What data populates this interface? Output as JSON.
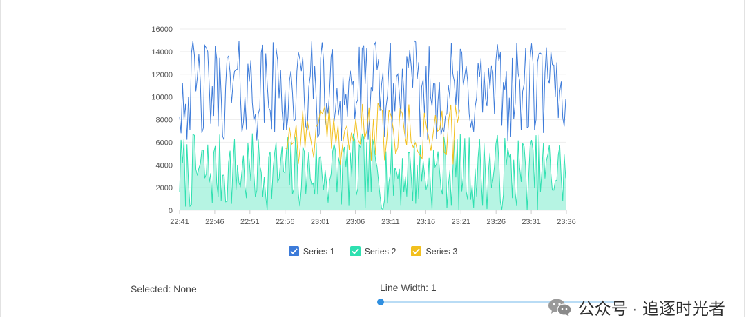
{
  "chart_data": {
    "type": "area",
    "y_ticks": [
      "0",
      "2000",
      "4000",
      "6000",
      "8000",
      "10000",
      "12000",
      "14000",
      "16000"
    ],
    "x_ticks": [
      "22:41",
      "22:46",
      "22:51",
      "22:56",
      "23:01",
      "23:06",
      "23:11",
      "23:16",
      "23:21",
      "23:26",
      "23:31",
      "23:36"
    ],
    "ylim": [
      0,
      16000
    ],
    "xlim": [
      "22:41",
      "23:36"
    ],
    "grid": "horizontal",
    "legend_placement": "bottom-center",
    "series": [
      {
        "name": "Series 1",
        "style": "line",
        "color": "#3d7bd9",
        "x": [
          "22:41",
          "22:46",
          "22:51",
          "22:56",
          "23:01",
          "23:06",
          "23:11",
          "23:16",
          "23:21",
          "23:26",
          "23:31",
          "23:36"
        ],
        "values": [
          14200,
          9500,
          11000,
          10500,
          9800,
          11800,
          10200,
          12000,
          9000,
          11500,
          10000,
          8000
        ],
        "range": [
          6000,
          15000
        ]
      },
      {
        "name": "Series 2",
        "style": "area",
        "color": "#2ee0b0",
        "x": [
          "22:41",
          "22:46",
          "22:51",
          "22:56",
          "23:01",
          "23:06",
          "23:11",
          "23:16",
          "23:21",
          "23:26",
          "23:31",
          "23:36"
        ],
        "values": [
          1800,
          3000,
          3500,
          2500,
          3200,
          2800,
          3000,
          2600,
          3100,
          3400,
          2900,
          2000
        ],
        "range": [
          0,
          6800
        ]
      },
      {
        "name": "Series 3",
        "style": "line",
        "color": "#f2c01e",
        "x": [
          "22:56",
          "23:01",
          "23:06",
          "23:11",
          "23:16",
          "23:21"
        ],
        "values": [
          7800,
          8200,
          6800,
          6500,
          7200,
          8000
        ],
        "range": [
          4000,
          9500
        ]
      }
    ]
  },
  "legend": [
    {
      "label": "Series 1",
      "color": "#3d7bd9",
      "checked": true
    },
    {
      "label": "Series 2",
      "color": "#2ee0b0",
      "checked": true
    },
    {
      "label": "Series 3",
      "color": "#f2c01e",
      "checked": true
    }
  ],
  "controls": {
    "selected_text": "Selected: None",
    "line_width_text": "Line Width: 1",
    "line_width_value": 1,
    "line_width_min": 1,
    "line_width_max": 10
  },
  "watermark": {
    "text": "公众号 · 追逐时光者",
    "icon": "wechat-icon"
  }
}
